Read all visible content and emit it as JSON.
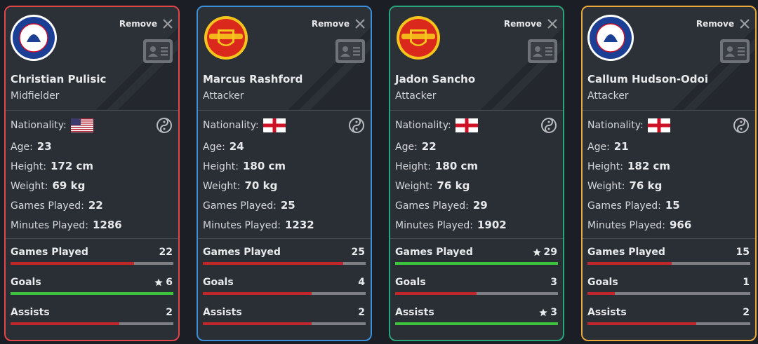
{
  "remove_label": "Remove",
  "players": [
    {
      "name": "Christian Pulisic",
      "position": "Midfielder",
      "club": "chelsea",
      "border_color": "#e0464a",
      "nationality_label": "Nationality:",
      "flag": "usa",
      "details": [
        {
          "label": "Age:",
          "value": "23"
        },
        {
          "label": "Height:",
          "value": "172 cm"
        },
        {
          "label": "Weight:",
          "value": "69 kg"
        },
        {
          "label": "Games Played:",
          "value": "22"
        },
        {
          "label": "Minutes Played:",
          "value": "1286"
        }
      ],
      "stats": [
        {
          "name": "Games Played",
          "value": 22
        },
        {
          "name": "Goals",
          "value": 6
        },
        {
          "name": "Assists",
          "value": 2
        }
      ]
    },
    {
      "name": "Marcus Rashford",
      "position": "Attacker",
      "club": "manutd",
      "border_color": "#3a8fd8",
      "nationality_label": "Nationality:",
      "flag": "england",
      "details": [
        {
          "label": "Age:",
          "value": "24"
        },
        {
          "label": "Height:",
          "value": "180 cm"
        },
        {
          "label": "Weight:",
          "value": "70 kg"
        },
        {
          "label": "Games Played:",
          "value": "25"
        },
        {
          "label": "Minutes Played:",
          "value": "1232"
        }
      ],
      "stats": [
        {
          "name": "Games Played",
          "value": 25
        },
        {
          "name": "Goals",
          "value": 4
        },
        {
          "name": "Assists",
          "value": 2
        }
      ]
    },
    {
      "name": "Jadon Sancho",
      "position": "Attacker",
      "club": "manutd",
      "border_color": "#2aa57a",
      "nationality_label": "Nationality:",
      "flag": "england",
      "details": [
        {
          "label": "Age:",
          "value": "22"
        },
        {
          "label": "Height:",
          "value": "180 cm"
        },
        {
          "label": "Weight:",
          "value": "76 kg"
        },
        {
          "label": "Games Played:",
          "value": "29"
        },
        {
          "label": "Minutes Played:",
          "value": "1902"
        }
      ],
      "stats": [
        {
          "name": "Games Played",
          "value": 29
        },
        {
          "name": "Goals",
          "value": 3
        },
        {
          "name": "Assists",
          "value": 3
        }
      ]
    },
    {
      "name": "Callum Hudson-Odoi",
      "position": "Attacker",
      "club": "chelsea",
      "border_color": "#e9a93a",
      "nationality_label": "Nationality:",
      "flag": "england",
      "details": [
        {
          "label": "Age:",
          "value": "21"
        },
        {
          "label": "Height:",
          "value": "182 cm"
        },
        {
          "label": "Weight:",
          "value": "76 kg"
        },
        {
          "label": "Games Played:",
          "value": "15"
        },
        {
          "label": "Minutes Played:",
          "value": "966"
        }
      ],
      "stats": [
        {
          "name": "Games Played",
          "value": 15
        },
        {
          "name": "Goals",
          "value": 1
        },
        {
          "name": "Assists",
          "value": 2
        }
      ]
    }
  ]
}
